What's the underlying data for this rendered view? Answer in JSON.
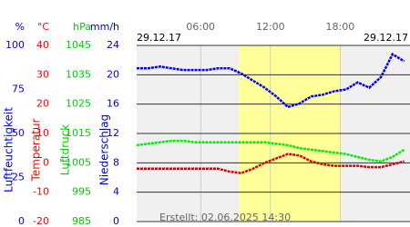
{
  "chart_data": {
    "type": "line",
    "date_left": "29.12.17",
    "date_right": "29.12.17",
    "created": "Erstellt: 02.06.2025 14:30",
    "xlim": [
      0.5,
      24
    ],
    "xticks": [
      {
        "value": 6,
        "label": "06:00"
      },
      {
        "value": 12,
        "label": "12:00"
      },
      {
        "value": 18,
        "label": "18:00"
      }
    ],
    "daylight": [
      9.3,
      18.1
    ],
    "axes": [
      {
        "unit": "%",
        "title": "Luftfeuchtigkeit",
        "color": "#0000ff",
        "ylim": [
          0,
          100
        ],
        "yticks": [
          0,
          25,
          50,
          75,
          100
        ]
      },
      {
        "unit": "°C",
        "title": "Temperatur",
        "color": "#ff0000",
        "ylim": [
          -20,
          40
        ],
        "yticks": [
          -20,
          -10,
          0,
          10,
          20,
          30,
          40
        ]
      },
      {
        "unit": "hPa",
        "title": "Luftdruck",
        "color": "#00cc00",
        "ylim": [
          985,
          1045
        ],
        "yticks": [
          985,
          995,
          1005,
          1015,
          1025,
          1035,
          1045
        ]
      },
      {
        "unit": "mm/h",
        "title": "Niederschlag",
        "color": "#0000cc",
        "ylim": [
          0,
          24
        ],
        "yticks": [
          0,
          4,
          8,
          12,
          16,
          20,
          24
        ]
      }
    ],
    "x": [
      0.5,
      1.5,
      2.5,
      3.5,
      4.5,
      5.5,
      6.5,
      7.5,
      8.5,
      9.5,
      10.5,
      11.5,
      12.5,
      13.5,
      14.5,
      15.5,
      16.5,
      17.5,
      18.5,
      19.5,
      20.5,
      21.5,
      22.5,
      23.5
    ],
    "series": [
      {
        "axis": 0,
        "color": "#0000ff",
        "values": [
          87,
          87,
          88,
          87,
          86,
          86,
          86,
          87,
          87,
          84,
          80,
          76,
          71,
          65,
          67,
          71,
          72,
          74,
          75,
          79,
          76,
          82,
          95,
          91
        ]
      },
      {
        "axis": 1,
        "color": "#dd0000",
        "values": [
          -2,
          -2,
          -2,
          -2,
          -2,
          -2,
          -2,
          -2,
          -3,
          -3.5,
          -2,
          0,
          1.5,
          3,
          2.5,
          0.5,
          -0.5,
          -1,
          -1,
          -1,
          -1.5,
          -1.5,
          -0.5,
          0.5
        ]
      },
      {
        "axis": 2,
        "color": "#00ee00",
        "values": [
          1011,
          1011.5,
          1012,
          1012.5,
          1012.5,
          1012,
          1012,
          1012,
          1012,
          1012,
          1012,
          1012,
          1011.5,
          1011,
          1010,
          1009.5,
          1009,
          1008.5,
          1008,
          1007,
          1006,
          1005.5,
          1007,
          1009.5
        ]
      }
    ]
  }
}
